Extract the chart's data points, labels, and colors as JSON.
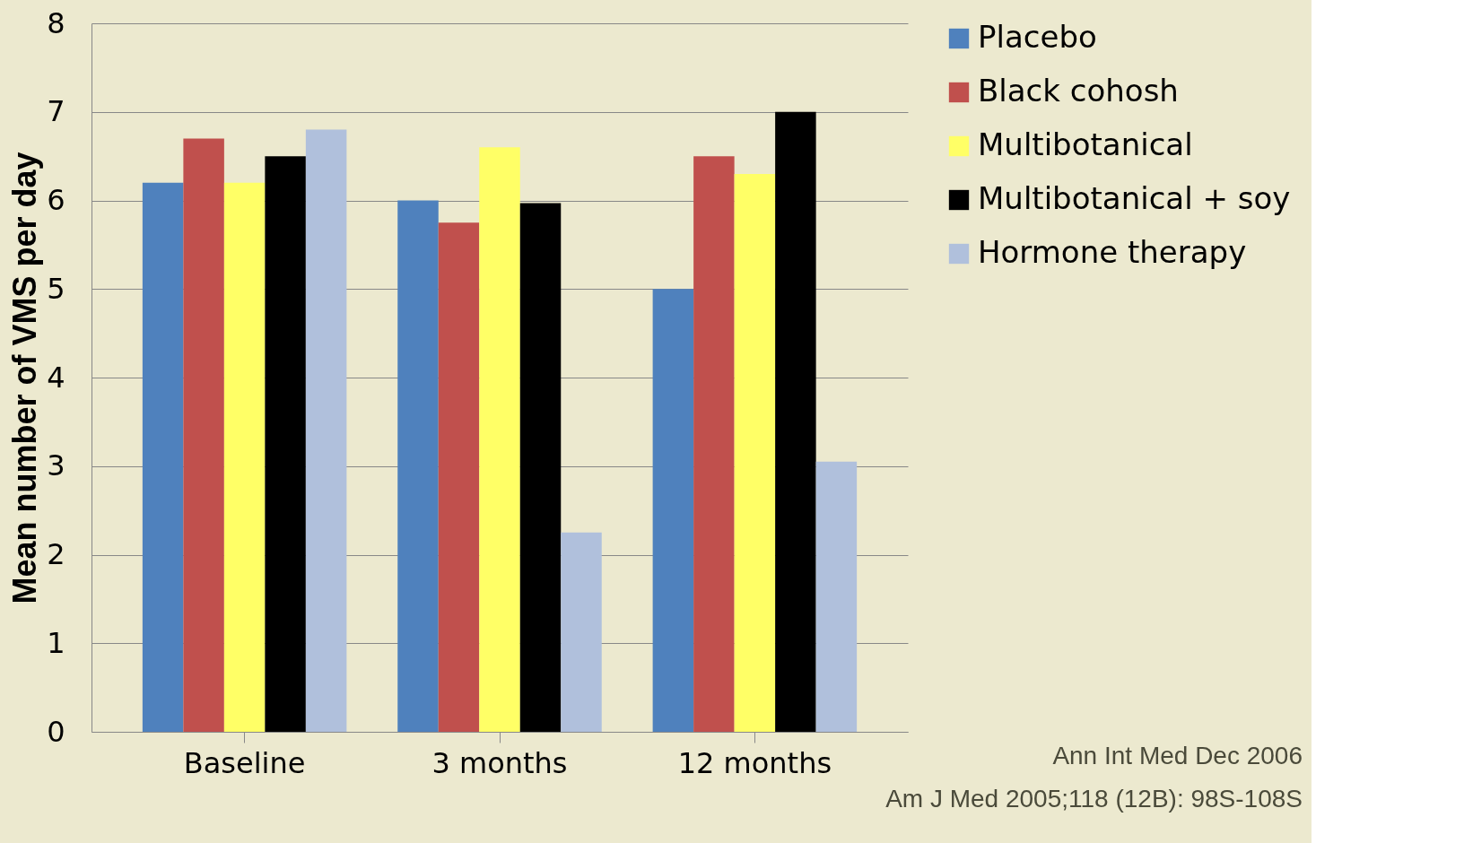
{
  "chart_data": {
    "type": "bar",
    "ylabel": "Mean  number of VMS per day",
    "categories": [
      "Baseline",
      "3 months",
      "12 months"
    ],
    "series": [
      {
        "name": "Placebo",
        "color": "#4f81bd",
        "values": [
          6.2,
          6.0,
          5.0
        ]
      },
      {
        "name": "Black cohosh",
        "color": "#c0504d",
        "values": [
          6.7,
          5.75,
          6.5
        ]
      },
      {
        "name": "Multibotanical",
        "color": "#ffff66",
        "values": [
          6.2,
          6.6,
          6.3
        ]
      },
      {
        "name": "Multibotanical + soy",
        "color": "#000000",
        "values": [
          6.5,
          5.97,
          7.0
        ]
      },
      {
        "name": "Hormone therapy",
        "color": "#b0c0dc",
        "values": [
          6.8,
          2.25,
          3.05
        ]
      }
    ],
    "ylim": [
      0,
      8
    ],
    "yticks": [
      0,
      1,
      2,
      3,
      4,
      5,
      6,
      7,
      8
    ],
    "grid": "y",
    "legend": "right",
    "annotations": [
      "Ann Int Med Dec 2006",
      "Am J Med 2005;118 (12B): 98S-108S"
    ]
  }
}
